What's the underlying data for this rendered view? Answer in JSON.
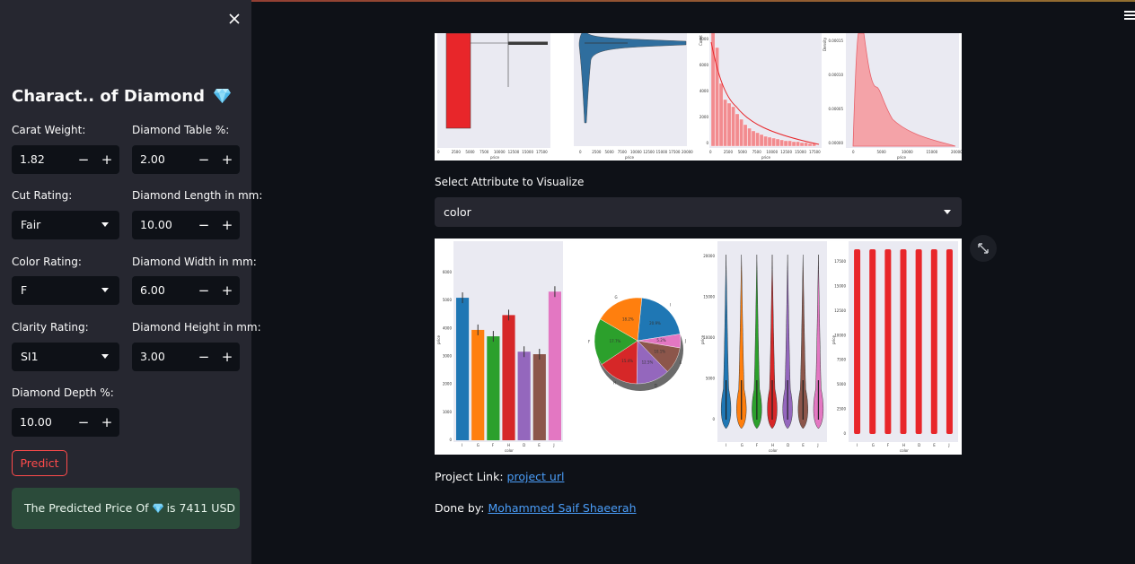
{
  "sidebar": {
    "close_icon": "close-icon",
    "title": "Charact.. of Diamond",
    "title_icon": "gem-icon",
    "fields": {
      "carat": {
        "label": "Carat Weight:",
        "value": "1.82"
      },
      "table": {
        "label": "Diamond Table %:",
        "value": "2.00"
      },
      "cut": {
        "label": "Cut Rating:",
        "value": "Fair"
      },
      "length": {
        "label": "Diamond Length in mm:",
        "value": "10.00"
      },
      "color": {
        "label": "Color Rating:",
        "value": "F"
      },
      "width": {
        "label": "Diamond Width in mm:",
        "value": "6.00"
      },
      "clarity": {
        "label": "Clarity Rating:",
        "value": "SI1"
      },
      "height": {
        "label": "Diamond Height in mm:",
        "value": "3.00"
      },
      "depth": {
        "label": "Diamond Depth %:",
        "value": "10.00"
      }
    },
    "stepper": {
      "minus": "−",
      "plus": "+"
    },
    "predict_label": "Predict",
    "result_prefix": "The Predicted Price Of",
    "result_suffix": "is 7411 USD"
  },
  "main": {
    "select_label": "Select Attribute to Visualize",
    "select_value": "color",
    "project_link_label": "Project Link:",
    "project_link_text": "project url",
    "done_by_label": "Done by:",
    "done_by_name": "Mohammed Saif Shaeerah"
  },
  "colors": {
    "primary": "#ff4b4b",
    "success_bg": "#2b4b3a",
    "link": "#4a9df8",
    "palette": [
      "#1f77b4",
      "#ff7f0e",
      "#2ca02c",
      "#d62728",
      "#9467bd",
      "#8c564b",
      "#e377c2"
    ]
  },
  "chart_data": [
    {
      "type": "bar",
      "description_source": "top row box plot of price",
      "x_ticks": [
        "0",
        "2500",
        "5000",
        "7500",
        "10000",
        "12500",
        "15000",
        "17500"
      ],
      "xlabel": "price"
    },
    {
      "type": "area",
      "description_source": "top row violin plot of price",
      "x_ticks": [
        "0",
        "2500",
        "5000",
        "7500",
        "10000",
        "12500",
        "15000",
        "17500",
        "20000"
      ],
      "xlabel": "price"
    },
    {
      "type": "bar",
      "description_source": "top row histogram of price",
      "x_ticks": [
        "0",
        "2500",
        "5000",
        "7500",
        "10000",
        "12500",
        "15000",
        "17500"
      ],
      "y_ticks": [
        "0",
        "2000",
        "4000",
        "6000",
        "8000"
      ],
      "xlabel": "price",
      "ylabel": "Count"
    },
    {
      "type": "area",
      "description_source": "top row density of price",
      "x_ticks": [
        "0",
        "5000",
        "10000",
        "15000",
        "20000"
      ],
      "y_ticks": [
        "0.00000",
        "0.00005",
        "0.00010",
        "0.00015"
      ],
      "xlabel": "price",
      "ylabel": "Density"
    },
    {
      "type": "bar",
      "categories": [
        "I",
        "G",
        "F",
        "H",
        "D",
        "E",
        "J"
      ],
      "values": [
        5100,
        3950,
        3720,
        4480,
        3170,
        3080,
        5320
      ],
      "ylim": [
        0,
        6000
      ],
      "y_ticks": [
        "0",
        "1000",
        "2000",
        "3000",
        "4000",
        "5000",
        "6000"
      ],
      "xlabel": "color",
      "ylabel": "price"
    },
    {
      "type": "pie",
      "labels": [
        "I",
        "G",
        "F",
        "H",
        "D",
        "E",
        "J"
      ],
      "values": [
        20.9,
        18.2,
        17.7,
        15.4,
        12.5,
        10.1,
        5.2
      ],
      "slice_labels": [
        "20.9%",
        "18.2%",
        "17.7%",
        "15.4%",
        "12.5%",
        "10.1%",
        "5.2%"
      ]
    },
    {
      "type": "area",
      "description_source": "violin of price by color",
      "categories": [
        "I",
        "G",
        "F",
        "H",
        "D",
        "E",
        "J"
      ],
      "y_ticks": [
        "0",
        "5000",
        "10000",
        "15000",
        "20000"
      ],
      "xlabel": "color",
      "ylabel": "price"
    },
    {
      "type": "scatter",
      "categories": [
        "I",
        "G",
        "F",
        "H",
        "D",
        "E",
        "J"
      ],
      "y_ticks": [
        "0",
        "2500",
        "5000",
        "7500",
        "10000",
        "12500",
        "15000",
        "17500"
      ],
      "xlabel": "color",
      "ylabel": "price"
    }
  ]
}
